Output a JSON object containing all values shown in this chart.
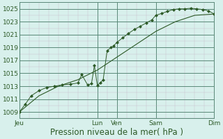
{
  "title": "Pression niveau de la mer( hPa )",
  "bg_color": "#d8f0ec",
  "grid_minor_color": "#c8b8c8",
  "grid_major_color": "#5a8878",
  "line_color": "#2d5a27",
  "ylim": [
    1008.5,
    1026.0
  ],
  "yticks": [
    1009,
    1011,
    1013,
    1015,
    1017,
    1019,
    1021,
    1023,
    1025
  ],
  "xlim": [
    0,
    10.0
  ],
  "day_positions": [
    0.0,
    4.0,
    5.0,
    7.0,
    10.0
  ],
  "day_labels": [
    "Jeu",
    "Lun",
    "Ven",
    "Sam",
    "Dim"
  ],
  "line1_x": [
    0.0,
    0.3,
    0.6,
    1.0,
    1.4,
    1.8,
    2.2,
    2.6,
    3.0,
    3.2,
    3.5,
    3.7,
    3.85,
    4.0,
    4.15,
    4.3,
    4.5,
    4.7,
    4.85,
    5.0,
    5.3,
    5.6,
    5.9,
    6.2,
    6.5,
    6.8,
    7.0,
    7.3,
    7.6,
    7.9,
    8.2,
    8.5,
    8.8,
    9.1,
    9.4,
    9.7,
    10.0
  ],
  "line1_y": [
    1009.0,
    1010.2,
    1011.5,
    1012.3,
    1012.8,
    1013.0,
    1013.2,
    1013.3,
    1013.5,
    1014.8,
    1013.2,
    1013.4,
    1016.2,
    1013.1,
    1013.5,
    1014.0,
    1018.5,
    1019.0,
    1019.3,
    1019.8,
    1020.5,
    1021.2,
    1021.8,
    1022.3,
    1022.8,
    1023.3,
    1024.0,
    1024.3,
    1024.6,
    1024.9,
    1025.0,
    1025.0,
    1025.1,
    1025.0,
    1024.9,
    1024.7,
    1024.2
  ],
  "line2_x": [
    0.0,
    1.0,
    2.0,
    3.0,
    4.0,
    5.0,
    6.0,
    7.0,
    8.0,
    9.0,
    10.0
  ],
  "line2_y": [
    1009.0,
    1011.5,
    1013.0,
    1014.0,
    1015.5,
    1017.5,
    1019.5,
    1021.5,
    1023.0,
    1024.0,
    1024.2
  ],
  "xlabel_fontsize": 8.5,
  "ytick_fontsize": 6.5,
  "xtick_fontsize": 6.5
}
